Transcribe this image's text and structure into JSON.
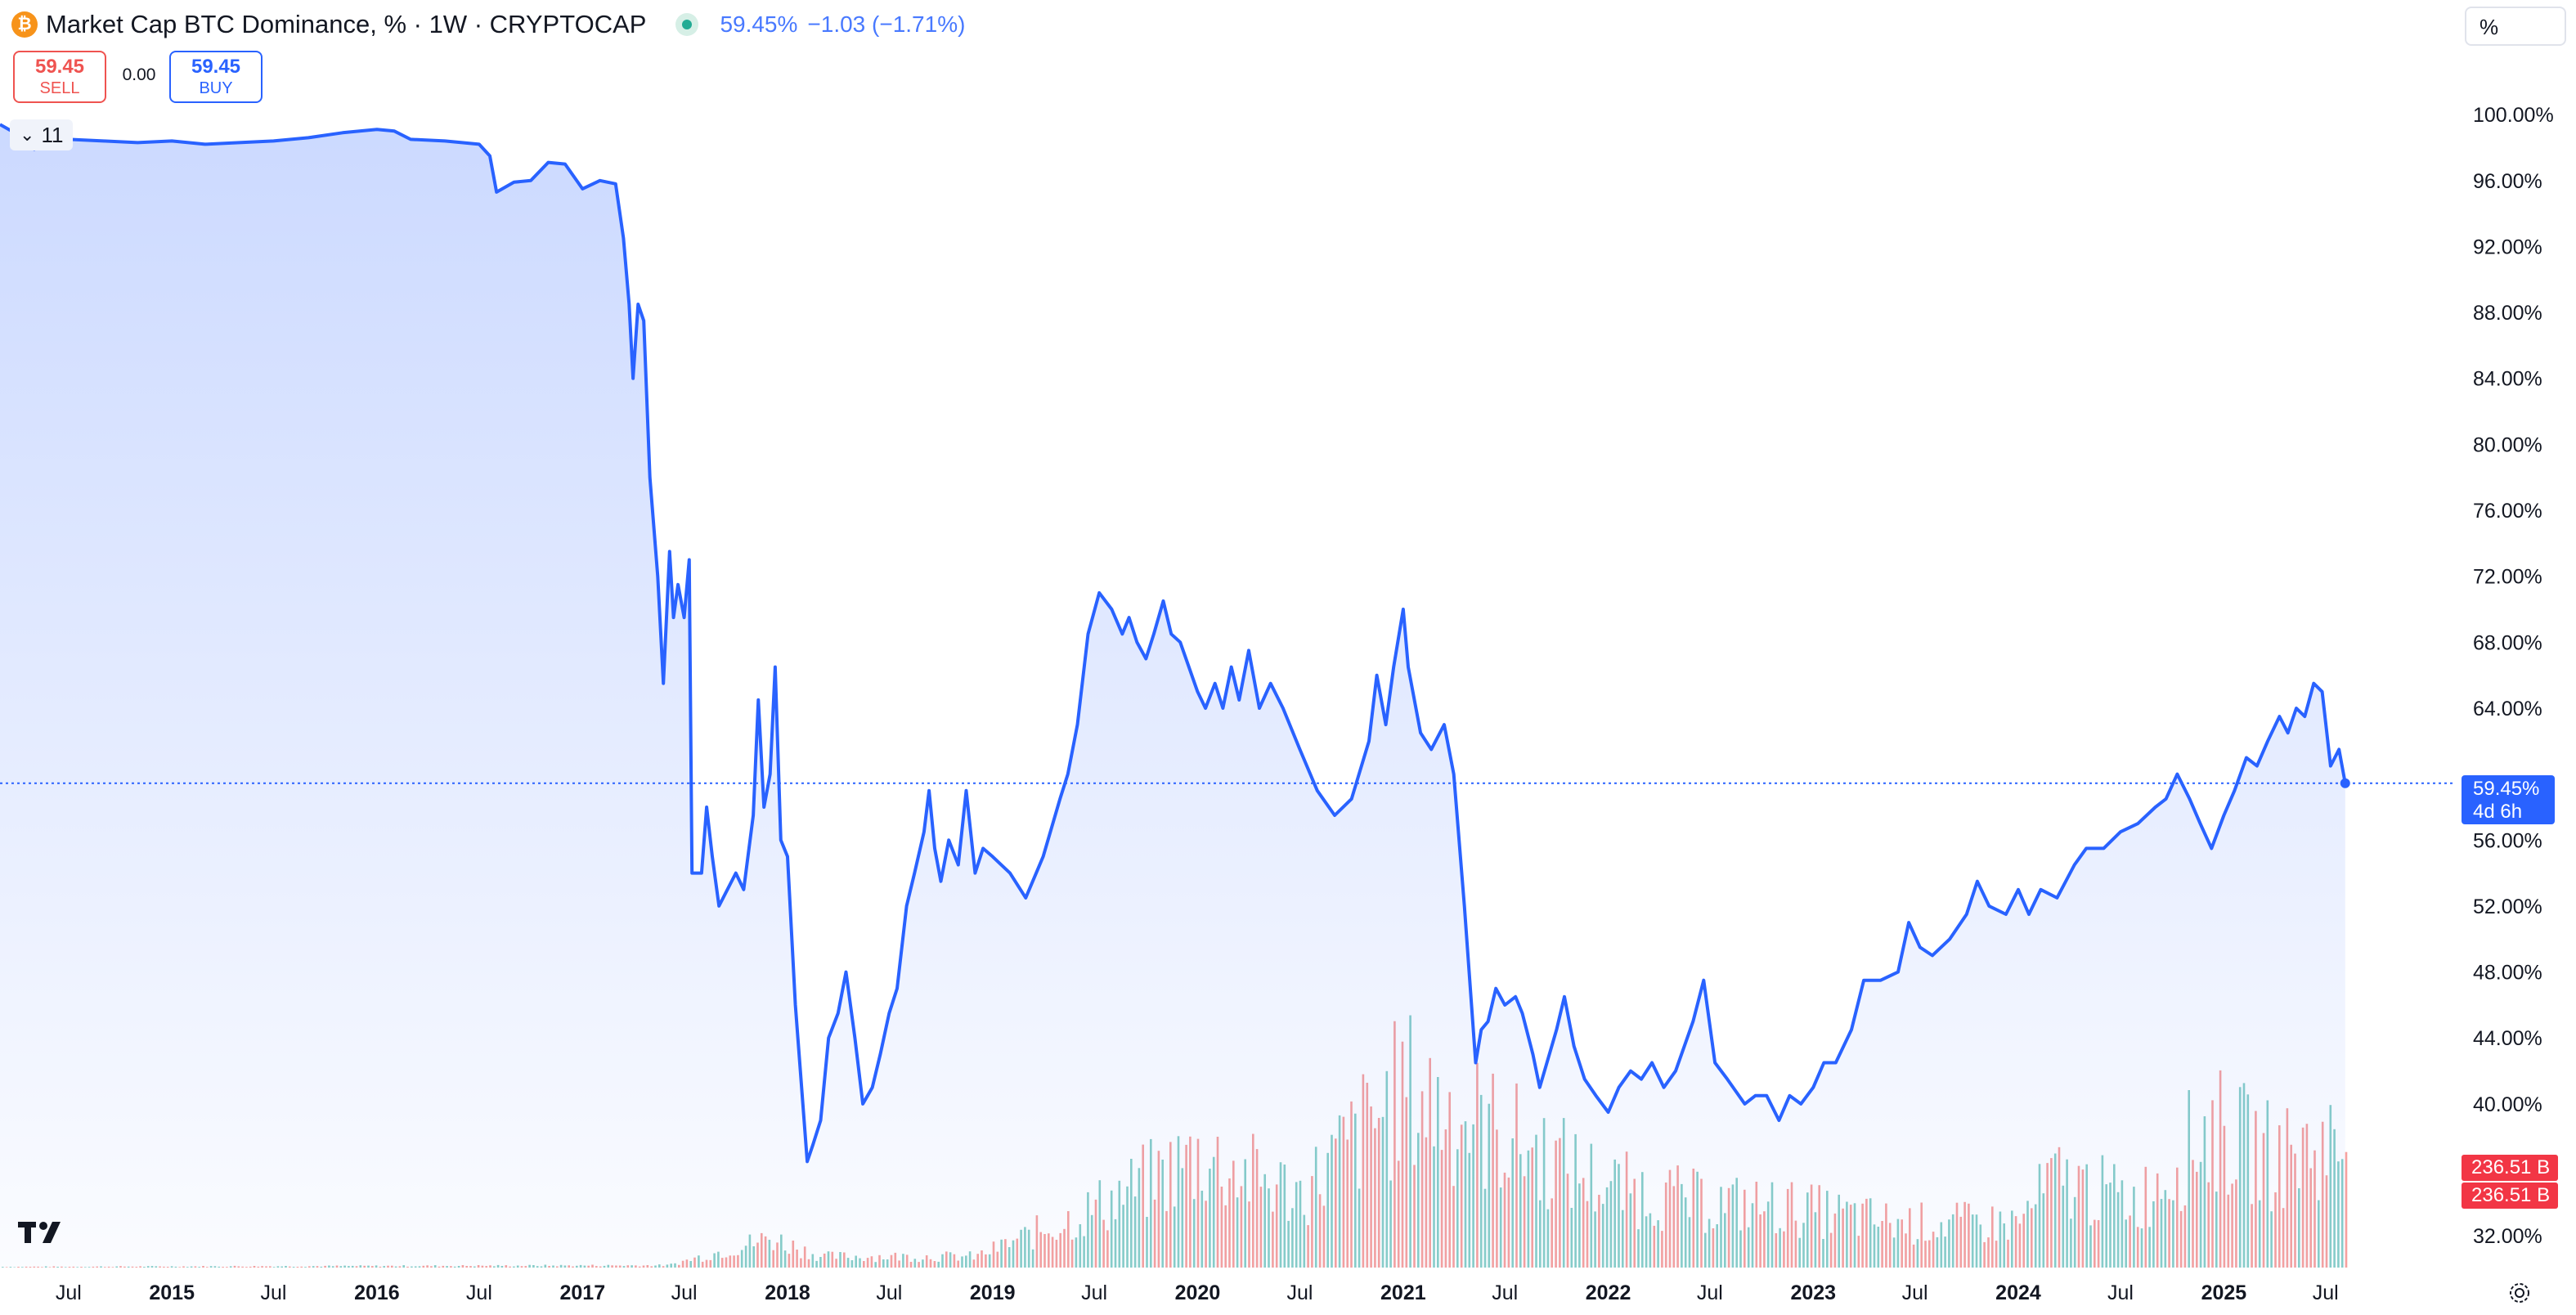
{
  "header": {
    "symbol_title": "Market Cap BTC Dominance, % · 1W · CRYPTOCAP",
    "icon": "bitcoin-icon",
    "live_status": "market-open-dot",
    "last_price": "59.45%",
    "change": "−1.03 (−1.71%)"
  },
  "trade": {
    "sell_value": "59.45",
    "sell_label": "SELL",
    "spread": "0.00",
    "buy_value": "59.45",
    "buy_label": "BUY"
  },
  "indicator_toggle": {
    "count": "11"
  },
  "scale_mode": "%",
  "price_tag": {
    "value": "59.45%",
    "countdown": "4d 6h"
  },
  "volume_tags": [
    "236.51 B",
    "236.51 B"
  ],
  "colors": {
    "line": "#2962ff",
    "area_top": "#d5defa",
    "vol_up": "#26a69a",
    "vol_down": "#ef5350",
    "price_tag": "#2962ff",
    "volume_tag": "#f23645",
    "text": "#131722",
    "axis_text": "#131722"
  },
  "chart_data": {
    "type": "area",
    "title": "Market Cap BTC Dominance, %",
    "interval": "1W",
    "y_unit": "%",
    "ylim": [
      30.0,
      104.0
    ],
    "y_ticks": [
      "100.00%",
      "96.00%",
      "92.00%",
      "88.00%",
      "84.00%",
      "80.00%",
      "76.00%",
      "72.00%",
      "68.00%",
      "64.00%",
      "56.00%",
      "52.00%",
      "48.00%",
      "44.00%",
      "40.00%",
      "32.00%"
    ],
    "x_ticks": [
      {
        "label": "Jul",
        "date": "2014-07-01",
        "bold": false
      },
      {
        "label": "2015",
        "date": "2015-01-01",
        "bold": true
      },
      {
        "label": "Jul",
        "date": "2015-07-01",
        "bold": false
      },
      {
        "label": "2016",
        "date": "2016-01-01",
        "bold": true
      },
      {
        "label": "Jul",
        "date": "2016-07-01",
        "bold": false
      },
      {
        "label": "2017",
        "date": "2017-01-01",
        "bold": true
      },
      {
        "label": "Jul",
        "date": "2017-07-01",
        "bold": false
      },
      {
        "label": "2018",
        "date": "2018-01-01",
        "bold": true
      },
      {
        "label": "Jul",
        "date": "2018-07-01",
        "bold": false
      },
      {
        "label": "2019",
        "date": "2019-01-01",
        "bold": true
      },
      {
        "label": "Jul",
        "date": "2019-07-01",
        "bold": false
      },
      {
        "label": "2020",
        "date": "2020-01-01",
        "bold": true
      },
      {
        "label": "Jul",
        "date": "2020-07-01",
        "bold": false
      },
      {
        "label": "2021",
        "date": "2021-01-01",
        "bold": true
      },
      {
        "label": "Jul",
        "date": "2021-07-01",
        "bold": false
      },
      {
        "label": "2022",
        "date": "2022-01-01",
        "bold": true
      },
      {
        "label": "Jul",
        "date": "2022-07-01",
        "bold": false
      },
      {
        "label": "2023",
        "date": "2023-01-01",
        "bold": true
      },
      {
        "label": "Jul",
        "date": "2023-07-01",
        "bold": false
      },
      {
        "label": "2024",
        "date": "2024-01-01",
        "bold": true
      },
      {
        "label": "Jul",
        "date": "2024-07-01",
        "bold": false
      },
      {
        "label": "2025",
        "date": "2025-01-01",
        "bold": true
      },
      {
        "label": "Jul",
        "date": "2025-07-01",
        "bold": false
      }
    ],
    "x_range": [
      "2014-03-01",
      "2025-12-10"
    ],
    "current_value": 59.45,
    "series": [
      {
        "values": [
          [
            "2014-03-01",
            99.4
          ],
          [
            "2014-04-01",
            98.8
          ],
          [
            "2014-05-01",
            97.9
          ],
          [
            "2014-06-01",
            98.6
          ],
          [
            "2014-07-01",
            98.5
          ],
          [
            "2014-09-01",
            98.4
          ],
          [
            "2014-11-01",
            98.3
          ],
          [
            "2015-01-01",
            98.4
          ],
          [
            "2015-03-01",
            98.2
          ],
          [
            "2015-05-01",
            98.3
          ],
          [
            "2015-07-01",
            98.4
          ],
          [
            "2015-09-01",
            98.6
          ],
          [
            "2015-11-01",
            98.9
          ],
          [
            "2016-01-01",
            99.1
          ],
          [
            "2016-02-01",
            99.0
          ],
          [
            "2016-03-01",
            98.5
          ],
          [
            "2016-05-01",
            98.4
          ],
          [
            "2016-07-01",
            98.2
          ],
          [
            "2016-07-20",
            97.5
          ],
          [
            "2016-08-01",
            95.3
          ],
          [
            "2016-09-01",
            95.9
          ],
          [
            "2016-10-01",
            96.0
          ],
          [
            "2016-11-01",
            97.1
          ],
          [
            "2016-12-01",
            97.0
          ],
          [
            "2017-01-01",
            95.5
          ],
          [
            "2017-02-01",
            96.0
          ],
          [
            "2017-03-01",
            95.8
          ],
          [
            "2017-03-15",
            92.5
          ],
          [
            "2017-03-25",
            88.5
          ],
          [
            "2017-04-01",
            84.0
          ],
          [
            "2017-04-10",
            88.5
          ],
          [
            "2017-04-20",
            87.5
          ],
          [
            "2017-05-01",
            78.0
          ],
          [
            "2017-05-15",
            72.0
          ],
          [
            "2017-05-25",
            65.5
          ],
          [
            "2017-06-05",
            73.5
          ],
          [
            "2017-06-12",
            69.5
          ],
          [
            "2017-06-20",
            71.5
          ],
          [
            "2017-07-01",
            69.5
          ],
          [
            "2017-07-10",
            73.0
          ],
          [
            "2017-07-15",
            54.0
          ],
          [
            "2017-08-01",
            54.0
          ],
          [
            "2017-08-10",
            58.0
          ],
          [
            "2017-08-20",
            55.0
          ],
          [
            "2017-09-01",
            52.0
          ],
          [
            "2017-10-01",
            54.0
          ],
          [
            "2017-10-15",
            53.0
          ],
          [
            "2017-11-01",
            57.5
          ],
          [
            "2017-11-10",
            64.5
          ],
          [
            "2017-11-20",
            58.0
          ],
          [
            "2017-12-01",
            60.0
          ],
          [
            "2017-12-10",
            66.5
          ],
          [
            "2017-12-20",
            56.0
          ],
          [
            "2018-01-01",
            55.0
          ],
          [
            "2018-01-15",
            46.0
          ],
          [
            "2018-02-05",
            36.5
          ],
          [
            "2018-02-15",
            37.5
          ],
          [
            "2018-03-01",
            39.0
          ],
          [
            "2018-03-15",
            44.0
          ],
          [
            "2018-04-01",
            45.5
          ],
          [
            "2018-04-15",
            48.0
          ],
          [
            "2018-05-01",
            44.0
          ],
          [
            "2018-05-15",
            40.0
          ],
          [
            "2018-06-01",
            41.0
          ],
          [
            "2018-06-15",
            43.0
          ],
          [
            "2018-07-01",
            45.5
          ],
          [
            "2018-07-15",
            47.0
          ],
          [
            "2018-08-01",
            52.0
          ],
          [
            "2018-08-15",
            54.0
          ],
          [
            "2018-09-01",
            56.5
          ],
          [
            "2018-09-10",
            59.0
          ],
          [
            "2018-09-20",
            55.5
          ],
          [
            "2018-10-01",
            53.5
          ],
          [
            "2018-10-15",
            56.0
          ],
          [
            "2018-11-01",
            54.5
          ],
          [
            "2018-11-15",
            59.0
          ],
          [
            "2018-12-01",
            54.0
          ],
          [
            "2018-12-15",
            55.5
          ],
          [
            "2019-01-01",
            55.0
          ],
          [
            "2019-02-01",
            54.0
          ],
          [
            "2019-03-01",
            52.5
          ],
          [
            "2019-04-01",
            55.0
          ],
          [
            "2019-05-01",
            58.5
          ],
          [
            "2019-05-15",
            60.0
          ],
          [
            "2019-06-01",
            63.0
          ],
          [
            "2019-06-20",
            68.5
          ],
          [
            "2019-07-10",
            71.0
          ],
          [
            "2019-08-01",
            70.0
          ],
          [
            "2019-08-20",
            68.5
          ],
          [
            "2019-09-01",
            69.5
          ],
          [
            "2019-09-15",
            68.0
          ],
          [
            "2019-10-01",
            67.0
          ],
          [
            "2019-10-15",
            68.5
          ],
          [
            "2019-11-01",
            70.5
          ],
          [
            "2019-11-15",
            68.5
          ],
          [
            "2019-12-01",
            68.0
          ],
          [
            "2020-01-01",
            65.0
          ],
          [
            "2020-01-15",
            64.0
          ],
          [
            "2020-02-01",
            65.5
          ],
          [
            "2020-02-15",
            64.0
          ],
          [
            "2020-03-01",
            66.5
          ],
          [
            "2020-03-15",
            64.5
          ],
          [
            "2020-04-01",
            67.5
          ],
          [
            "2020-04-20",
            64.0
          ],
          [
            "2020-05-10",
            65.5
          ],
          [
            "2020-06-01",
            64.0
          ],
          [
            "2020-07-01",
            61.5
          ],
          [
            "2020-08-01",
            59.0
          ],
          [
            "2020-09-01",
            57.5
          ],
          [
            "2020-10-01",
            58.5
          ],
          [
            "2020-11-01",
            62.0
          ],
          [
            "2020-11-15",
            66.0
          ],
          [
            "2020-12-01",
            63.0
          ],
          [
            "2020-12-15",
            66.5
          ],
          [
            "2021-01-01",
            70.0
          ],
          [
            "2021-01-10",
            66.5
          ],
          [
            "2021-02-01",
            62.5
          ],
          [
            "2021-02-20",
            61.5
          ],
          [
            "2021-03-15",
            63.0
          ],
          [
            "2021-04-01",
            60.0
          ],
          [
            "2021-04-20",
            52.0
          ],
          [
            "2021-05-10",
            42.5
          ],
          [
            "2021-05-20",
            44.5
          ],
          [
            "2021-06-01",
            45.0
          ],
          [
            "2021-06-15",
            47.0
          ],
          [
            "2021-07-01",
            46.0
          ],
          [
            "2021-07-20",
            46.5
          ],
          [
            "2021-08-01",
            45.5
          ],
          [
            "2021-08-20",
            43.0
          ],
          [
            "2021-09-01",
            41.0
          ],
          [
            "2021-10-01",
            44.5
          ],
          [
            "2021-10-15",
            46.5
          ],
          [
            "2021-11-01",
            43.5
          ],
          [
            "2021-11-20",
            41.5
          ],
          [
            "2021-12-10",
            40.5
          ],
          [
            "2022-01-01",
            39.5
          ],
          [
            "2022-01-20",
            41.0
          ],
          [
            "2022-02-10",
            42.0
          ],
          [
            "2022-03-01",
            41.5
          ],
          [
            "2022-03-20",
            42.5
          ],
          [
            "2022-04-10",
            41.0
          ],
          [
            "2022-05-01",
            42.0
          ],
          [
            "2022-06-01",
            45.0
          ],
          [
            "2022-06-20",
            47.5
          ],
          [
            "2022-07-10",
            42.5
          ],
          [
            "2022-08-01",
            41.5
          ],
          [
            "2022-09-01",
            40.0
          ],
          [
            "2022-09-20",
            40.5
          ],
          [
            "2022-10-10",
            40.5
          ],
          [
            "2022-11-01",
            39.0
          ],
          [
            "2022-11-20",
            40.5
          ],
          [
            "2022-12-10",
            40.0
          ],
          [
            "2023-01-01",
            41.0
          ],
          [
            "2023-01-20",
            42.5
          ],
          [
            "2023-02-10",
            42.5
          ],
          [
            "2023-03-10",
            44.5
          ],
          [
            "2023-04-01",
            47.5
          ],
          [
            "2023-05-01",
            47.5
          ],
          [
            "2023-06-01",
            48.0
          ],
          [
            "2023-06-20",
            51.0
          ],
          [
            "2023-07-10",
            49.5
          ],
          [
            "2023-08-01",
            49.0
          ],
          [
            "2023-09-01",
            50.0
          ],
          [
            "2023-10-01",
            51.5
          ],
          [
            "2023-10-20",
            53.5
          ],
          [
            "2023-11-10",
            52.0
          ],
          [
            "2023-12-10",
            51.5
          ],
          [
            "2024-01-01",
            53.0
          ],
          [
            "2024-01-20",
            51.5
          ],
          [
            "2024-02-10",
            53.0
          ],
          [
            "2024-03-10",
            52.5
          ],
          [
            "2024-04-10",
            54.5
          ],
          [
            "2024-05-01",
            55.5
          ],
          [
            "2024-06-01",
            55.5
          ],
          [
            "2024-07-01",
            56.5
          ],
          [
            "2024-08-01",
            57.0
          ],
          [
            "2024-09-01",
            58.0
          ],
          [
            "2024-09-20",
            58.5
          ],
          [
            "2024-10-10",
            60.0
          ],
          [
            "2024-11-01",
            58.5
          ],
          [
            "2024-11-20",
            57.0
          ],
          [
            "2024-12-10",
            55.5
          ],
          [
            "2025-01-01",
            57.5
          ],
          [
            "2025-01-20",
            59.0
          ],
          [
            "2025-02-10",
            61.0
          ],
          [
            "2025-03-01",
            60.5
          ],
          [
            "2025-03-20",
            62.0
          ],
          [
            "2025-04-10",
            63.5
          ],
          [
            "2025-04-25",
            62.5
          ],
          [
            "2025-05-10",
            64.0
          ],
          [
            "2025-05-25",
            63.5
          ],
          [
            "2025-06-10",
            65.5
          ],
          [
            "2025-06-25",
            65.0
          ],
          [
            "2025-07-10",
            60.5
          ],
          [
            "2025-07-25",
            61.5
          ],
          [
            "2025-08-05",
            59.45
          ]
        ]
      }
    ],
    "volume": {
      "unit": "B",
      "last_value": 236.51,
      "note": "volume histogram bars, green=up week, red=down week"
    }
  }
}
